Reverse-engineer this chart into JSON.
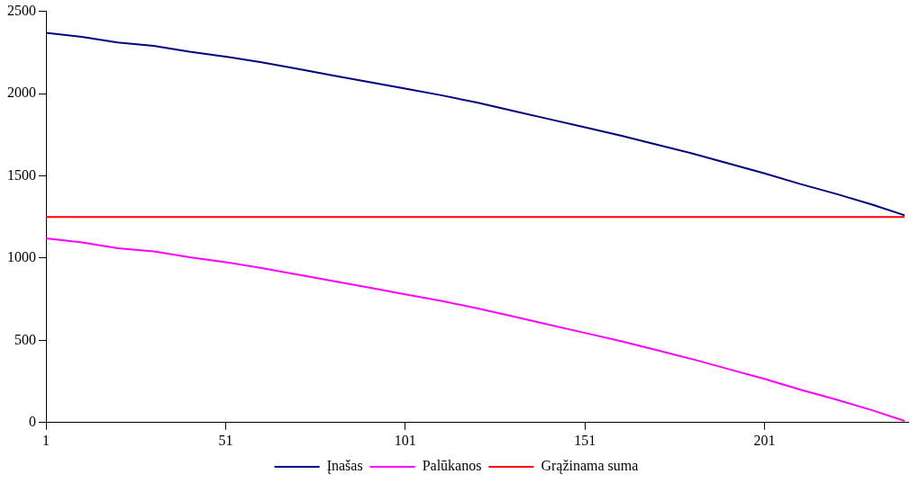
{
  "chart_data": {
    "type": "line",
    "x": [
      1,
      11,
      21,
      31,
      41,
      51,
      61,
      71,
      81,
      91,
      101,
      111,
      121,
      131,
      141,
      151,
      161,
      171,
      181,
      191,
      201,
      211,
      221,
      231,
      240
    ],
    "series": [
      {
        "name": "Įnašas",
        "color": "#000080",
        "values": [
          2370,
          2345,
          2310,
          2290,
          2255,
          2225,
          2190,
          2150,
          2110,
          2070,
          2030,
          1990,
          1945,
          1895,
          1845,
          1795,
          1745,
          1690,
          1635,
          1575,
          1515,
          1450,
          1390,
          1325,
          1260
        ]
      },
      {
        "name": "Palūkanos",
        "color": "#ff00ff",
        "values": [
          1120,
          1095,
          1060,
          1040,
          1005,
          975,
          940,
          900,
          860,
          820,
          780,
          740,
          695,
          645,
          595,
          545,
          495,
          440,
          385,
          325,
          265,
          200,
          140,
          75,
          10
        ]
      },
      {
        "name": "Grąžinama suma",
        "color": "#ff0000",
        "x": [
          1,
          240
        ],
        "values": [
          1250,
          1250
        ]
      }
    ],
    "xlim": [
      1,
      241
    ],
    "xticks": [
      1,
      51,
      101,
      151,
      201
    ],
    "ylim": [
      0,
      2500
    ],
    "yticks": [
      0,
      500,
      1000,
      1500,
      2000,
      2500
    ],
    "grid": false,
    "legend": "bottom",
    "marker": "none",
    "line_style": "solid"
  }
}
